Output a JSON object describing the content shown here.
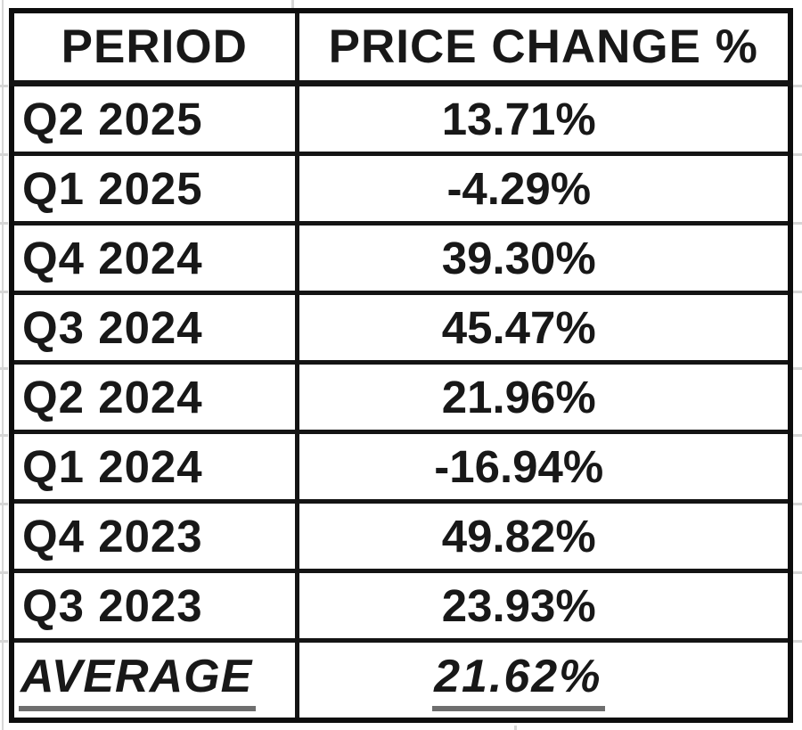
{
  "table": {
    "header": {
      "period": "PERIOD",
      "price_change": "PRICE CHANGE %"
    },
    "rows": [
      {
        "period": "Q2 2025",
        "change": "13.71%"
      },
      {
        "period": "Q1 2025",
        "change": "-4.29%"
      },
      {
        "period": "Q4 2024",
        "change": "39.30%"
      },
      {
        "period": "Q3 2024",
        "change": "45.47%"
      },
      {
        "period": "Q2 2024",
        "change": "21.96%"
      },
      {
        "period": "Q1 2024",
        "change": "-16.94%"
      },
      {
        "period": "Q4 2023",
        "change": "49.82%"
      },
      {
        "period": "Q3 2023",
        "change": "23.93%"
      }
    ],
    "summary": {
      "label": "AVERAGE",
      "value": "21.62%"
    }
  },
  "colors": {
    "background": "#ffffff",
    "border": "#141414",
    "text": "#181818",
    "faint_gridline": "#d6d6d6",
    "underline": "#6e6e6e"
  },
  "chart_data": {
    "type": "table",
    "columns": [
      "PERIOD",
      "PRICE CHANGE %"
    ],
    "categories": [
      "Q2 2025",
      "Q1 2025",
      "Q4 2024",
      "Q3 2024",
      "Q2 2024",
      "Q1 2024",
      "Q4 2023",
      "Q3 2023"
    ],
    "values": [
      13.71,
      -4.29,
      39.3,
      45.47,
      21.96,
      -16.94,
      49.82,
      23.93
    ],
    "average": 21.62
  }
}
